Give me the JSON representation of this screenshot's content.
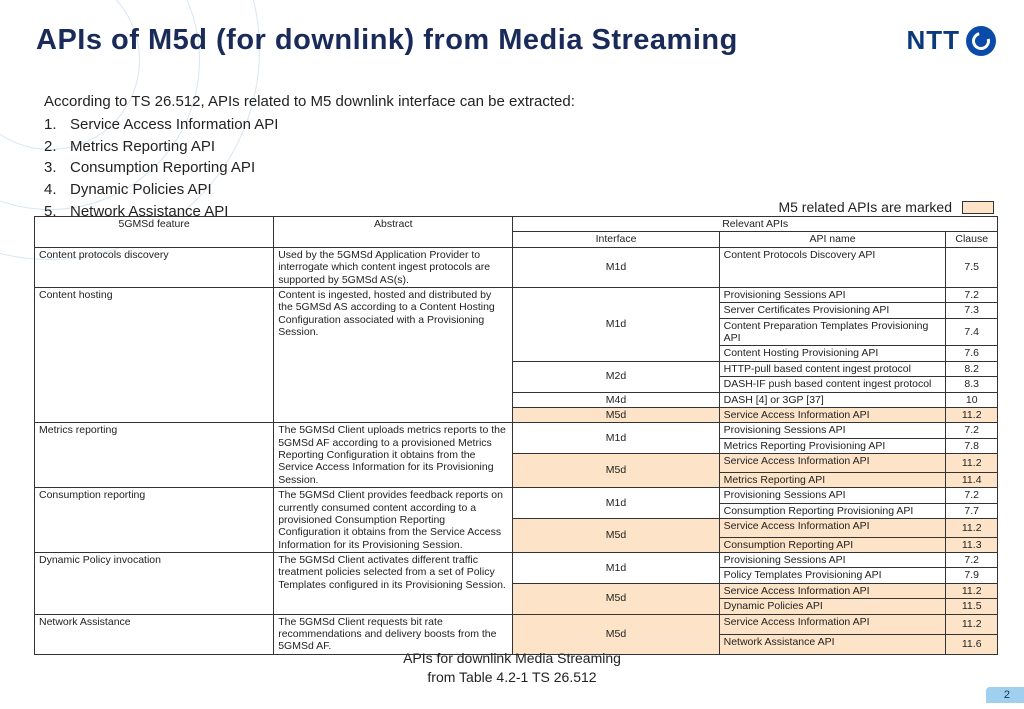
{
  "colors": {
    "title": "#1a2b5a",
    "highlight": "#fde4c8",
    "pageBadgeBg": "#9fd0ee",
    "logo": "#0a4aa8",
    "arc": "#d8e6f2",
    "border": "#333333",
    "text": "#222222"
  },
  "header": {
    "title": "APIs of M5d (for downlink) from Media Streaming",
    "logo_text": "NTT"
  },
  "intro": {
    "lead": "According to TS 26.512, APIs related to M5 downlink interface can be extracted:",
    "items": [
      "Service Access Information API",
      "Metrics Reporting API",
      "Consumption Reporting API",
      "Dynamic Policies API",
      "Network Assistance API"
    ]
  },
  "legend": {
    "text": "M5 related APIs are marked"
  },
  "table": {
    "headers": {
      "feature": "5GMSd feature",
      "abstract": "Abstract",
      "relevant": "Relevant APIs",
      "interface": "Interface",
      "api_name": "API name",
      "clause": "Clause"
    },
    "groups": [
      {
        "feature": "Content protocols discovery",
        "abstract": "Used by the 5GMSd Application Provider to interrogate which content ingest protocols are supported by 5GMSd AS(s).",
        "ifaces": [
          {
            "interface": "M1d",
            "hl": false,
            "apis": [
              {
                "name": "Content Protocols Discovery API",
                "clause": "7.5",
                "hl": false
              }
            ]
          }
        ]
      },
      {
        "feature": "Content hosting",
        "abstract": "Content is ingested, hosted and distributed by the 5GMSd AS according to a Content Hosting Configuration associated with a Provisioning Session.",
        "ifaces": [
          {
            "interface": "M1d",
            "hl": false,
            "apis": [
              {
                "name": "Provisioning Sessions API",
                "clause": "7.2",
                "hl": false
              },
              {
                "name": "Server Certificates Provisioning API",
                "clause": "7.3",
                "hl": false
              },
              {
                "name": "Content Preparation Templates Provisioning API",
                "clause": "7.4",
                "hl": false
              },
              {
                "name": "Content Hosting Provisioning API",
                "clause": "7.6",
                "hl": false
              }
            ]
          },
          {
            "interface": "M2d",
            "hl": false,
            "apis": [
              {
                "name": "HTTP-pull based content ingest protocol",
                "clause": "8.2",
                "hl": false
              },
              {
                "name": "DASH-IF push based content ingest protocol",
                "clause": "8.3",
                "hl": false
              }
            ]
          },
          {
            "interface": "M4d",
            "hl": false,
            "apis": [
              {
                "name": "DASH [4] or 3GP [37]",
                "clause": "10",
                "hl": false
              }
            ]
          },
          {
            "interface": "M5d",
            "hl": true,
            "apis": [
              {
                "name": "Service Access Information API",
                "clause": "11.2",
                "hl": true
              }
            ]
          }
        ]
      },
      {
        "feature": "Metrics reporting",
        "abstract": "The 5GMSd Client uploads metrics reports to the 5GMSd AF according to a provisioned Metrics Reporting Configuration it obtains from the Service Access Information for its Provisioning Session.",
        "ifaces": [
          {
            "interface": "M1d",
            "hl": false,
            "apis": [
              {
                "name": "Provisioning Sessions API",
                "clause": "7.2",
                "hl": false
              },
              {
                "name": "Metrics Reporting Provisioning API",
                "clause": "7.8",
                "hl": false
              }
            ]
          },
          {
            "interface": "M5d",
            "hl": true,
            "apis": [
              {
                "name": "Service Access Information API",
                "clause": "11.2",
                "hl": true
              },
              {
                "name": "Metrics Reporting API",
                "clause": "11.4",
                "hl": true
              }
            ]
          }
        ]
      },
      {
        "feature": "Consumption reporting",
        "abstract": "The 5GMSd Client provides feedback reports on currently consumed content according to a provisioned Consumption Reporting Configuration it obtains from the Service Access Information for its Provisioning Session.",
        "ifaces": [
          {
            "interface": "M1d",
            "hl": false,
            "apis": [
              {
                "name": "Provisioning Sessions API",
                "clause": "7.2",
                "hl": false
              },
              {
                "name": "Consumption Reporting Provisioning API",
                "clause": "7.7",
                "hl": false
              }
            ]
          },
          {
            "interface": "M5d",
            "hl": true,
            "apis": [
              {
                "name": "Service Access Information API",
                "clause": "11.2",
                "hl": true
              },
              {
                "name": "Consumption Reporting API",
                "clause": "11.3",
                "hl": true
              }
            ]
          }
        ]
      },
      {
        "feature": "Dynamic Policy invocation",
        "abstract": "The 5GMSd Client activates different traffic treatment policies selected from a set of Policy Templates configured in its Provisioning Session.",
        "ifaces": [
          {
            "interface": "M1d",
            "hl": false,
            "apis": [
              {
                "name": "Provisioning Sessions API",
                "clause": "7.2",
                "hl": false
              },
              {
                "name": "Policy Templates Provisioning API",
                "clause": "7.9",
                "hl": false
              }
            ]
          },
          {
            "interface": "M5d",
            "hl": true,
            "apis": [
              {
                "name": "Service Access Information API",
                "clause": "11.2",
                "hl": true
              },
              {
                "name": "Dynamic Policies API",
                "clause": "11.5",
                "hl": true
              }
            ]
          }
        ]
      },
      {
        "feature": "Network Assistance",
        "abstract": "The 5GMSd Client requests bit rate recommendations and delivery boosts from the 5GMSd AF.",
        "ifaces": [
          {
            "interface": "M5d",
            "hl": true,
            "apis": [
              {
                "name": "Service Access Information API",
                "clause": "11.2",
                "hl": true
              },
              {
                "name": "Network Assistance API",
                "clause": "11.6",
                "hl": true
              }
            ]
          }
        ]
      }
    ]
  },
  "caption": {
    "line1": "APIs for downlink Media Streaming",
    "line2": "from Table 4.2-1 TS 26.512"
  },
  "page_number": "2"
}
